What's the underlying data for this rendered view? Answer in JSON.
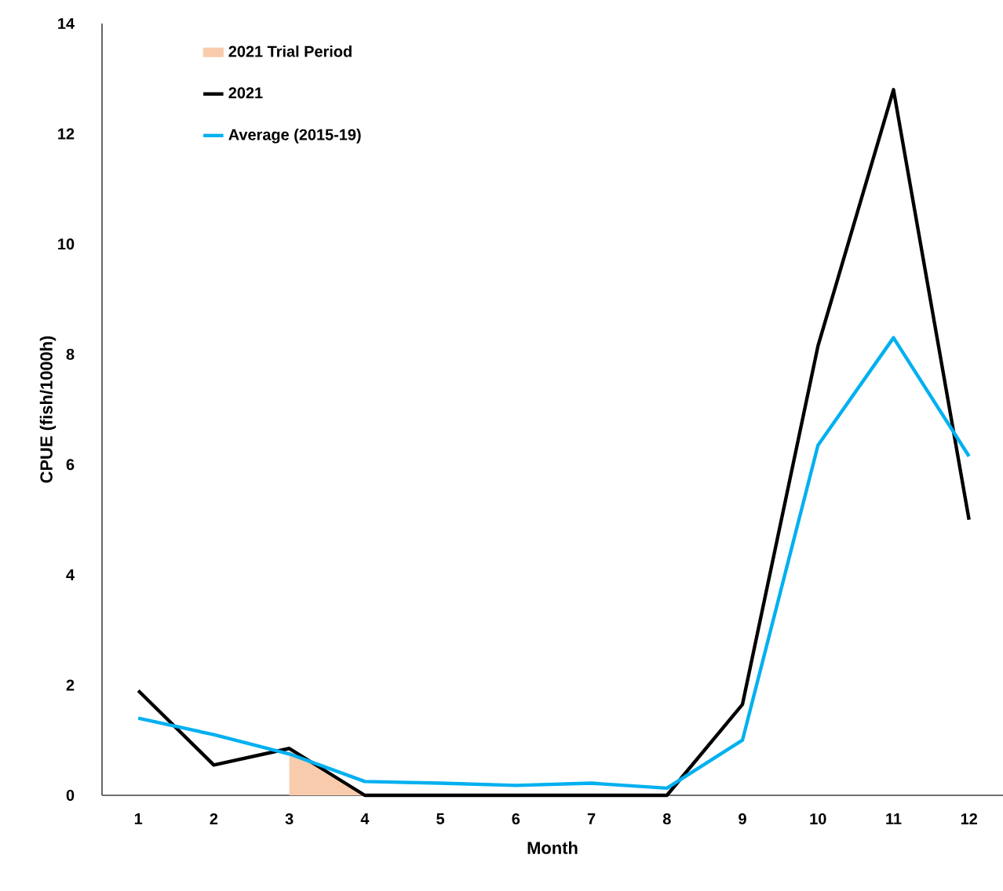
{
  "chart_data": {
    "type": "line",
    "xlabel": "Month",
    "ylabel": "CPUE (fish/1000h)",
    "categories": [
      "1",
      "2",
      "3",
      "4",
      "5",
      "6",
      "7",
      "8",
      "9",
      "10",
      "11",
      "12"
    ],
    "series": [
      {
        "name": "2021 Trial Period",
        "type": "area",
        "color": "#f8cbad",
        "values": [
          null,
          null,
          0.85,
          0,
          null,
          null,
          null,
          null,
          null,
          null,
          null,
          null
        ]
      },
      {
        "name": "2021",
        "color": "#000000",
        "values": [
          1.9,
          0.55,
          0.85,
          0,
          0,
          0,
          0,
          0,
          1.65,
          8.15,
          12.8,
          5.0
        ]
      },
      {
        "name": "Average (2015-19)",
        "color": "#00b0f0",
        "values": [
          1.4,
          1.1,
          0.75,
          0.25,
          0.22,
          0.18,
          0.22,
          0.13,
          1.0,
          6.35,
          8.3,
          6.15
        ]
      }
    ],
    "ylim": [
      0,
      14
    ],
    "yticks": [
      0,
      2,
      4,
      6,
      8,
      10,
      12,
      14
    ],
    "legend": "top left"
  }
}
